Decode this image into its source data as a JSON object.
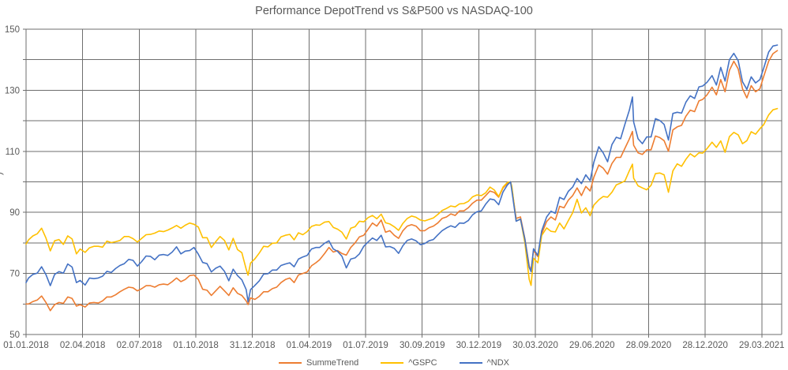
{
  "colors": {
    "background": "#ffffff",
    "text": "#595959",
    "grid": "#6e6e6e",
    "axis": "#595959"
  },
  "y_axis_label_fragment": ")",
  "chart_data": {
    "type": "line",
    "title": "Performance DepotTrend vs S&P500 vs NASDAQ-100",
    "xlabel": "",
    "ylabel": "",
    "ylim": [
      50,
      150
    ],
    "y_gridline_step": 10,
    "y_tick_labels": [
      150,
      130,
      110,
      90,
      70,
      50
    ],
    "grid": "both",
    "legend_position": "bottom-center",
    "x_range": [
      "2018-01-01",
      "2021-04-30"
    ],
    "x_ticks": [
      {
        "date": "2018-01-01",
        "label": "01.01.2018"
      },
      {
        "date": "2018-04-02",
        "label": "02.04.2018"
      },
      {
        "date": "2018-07-02",
        "label": "02.07.2018"
      },
      {
        "date": "2018-10-01",
        "label": "01.10.2018"
      },
      {
        "date": "2018-12-31",
        "label": "31.12.2018"
      },
      {
        "date": "2019-04-01",
        "label": "01.04.2019"
      },
      {
        "date": "2019-07-01",
        "label": "01.07.2019"
      },
      {
        "date": "2019-09-30",
        "label": "30.09.2019"
      },
      {
        "date": "2019-12-30",
        "label": "30.12.2019"
      },
      {
        "date": "2020-03-30",
        "label": "30.03.2020"
      },
      {
        "date": "2020-06-29",
        "label": "29.06.2020"
      },
      {
        "date": "2020-09-28",
        "label": "28.09.2020"
      },
      {
        "date": "2020-12-28",
        "label": "28.12.2020"
      },
      {
        "date": "2021-03-29",
        "label": "29.03.2021"
      }
    ],
    "dates": [
      "2018-01-01",
      "2018-01-05",
      "2018-01-12",
      "2018-01-19",
      "2018-01-26",
      "2018-02-02",
      "2018-02-09",
      "2018-02-16",
      "2018-02-23",
      "2018-03-02",
      "2018-03-09",
      "2018-03-16",
      "2018-03-23",
      "2018-03-29",
      "2018-04-06",
      "2018-04-13",
      "2018-04-20",
      "2018-04-27",
      "2018-05-04",
      "2018-05-11",
      "2018-05-18",
      "2018-05-25",
      "2018-06-01",
      "2018-06-08",
      "2018-06-15",
      "2018-06-22",
      "2018-06-29",
      "2018-07-06",
      "2018-07-13",
      "2018-07-20",
      "2018-07-27",
      "2018-08-03",
      "2018-08-10",
      "2018-08-17",
      "2018-08-24",
      "2018-08-31",
      "2018-09-07",
      "2018-09-14",
      "2018-09-21",
      "2018-09-28",
      "2018-10-05",
      "2018-10-12",
      "2018-10-19",
      "2018-10-26",
      "2018-11-02",
      "2018-11-09",
      "2018-11-16",
      "2018-11-23",
      "2018-11-30",
      "2018-12-07",
      "2018-12-14",
      "2018-12-21",
      "2018-12-24",
      "2018-12-28",
      "2019-01-04",
      "2019-01-11",
      "2019-01-18",
      "2019-01-25",
      "2019-02-01",
      "2019-02-08",
      "2019-02-15",
      "2019-02-22",
      "2019-03-01",
      "2019-03-08",
      "2019-03-15",
      "2019-03-22",
      "2019-03-29",
      "2019-04-05",
      "2019-04-12",
      "2019-04-18",
      "2019-04-26",
      "2019-05-03",
      "2019-05-10",
      "2019-05-17",
      "2019-05-24",
      "2019-05-31",
      "2019-06-07",
      "2019-06-14",
      "2019-06-21",
      "2019-06-28",
      "2019-07-05",
      "2019-07-12",
      "2019-07-19",
      "2019-07-26",
      "2019-08-02",
      "2019-08-09",
      "2019-08-16",
      "2019-08-23",
      "2019-08-30",
      "2019-09-06",
      "2019-09-13",
      "2019-09-20",
      "2019-09-27",
      "2019-10-04",
      "2019-10-11",
      "2019-10-18",
      "2019-10-25",
      "2019-11-01",
      "2019-11-08",
      "2019-11-15",
      "2019-11-22",
      "2019-11-29",
      "2019-12-06",
      "2019-12-13",
      "2019-12-20",
      "2019-12-27",
      "2020-01-03",
      "2020-01-10",
      "2020-01-17",
      "2020-01-24",
      "2020-01-31",
      "2020-02-07",
      "2020-02-14",
      "2020-02-19",
      "2020-02-21",
      "2020-02-28",
      "2020-03-06",
      "2020-03-13",
      "2020-03-20",
      "2020-03-23",
      "2020-03-27",
      "2020-04-03",
      "2020-04-09",
      "2020-04-17",
      "2020-04-24",
      "2020-05-01",
      "2020-05-08",
      "2020-05-15",
      "2020-05-22",
      "2020-05-29",
      "2020-06-05",
      "2020-06-12",
      "2020-06-19",
      "2020-06-26",
      "2020-07-02",
      "2020-07-10",
      "2020-07-17",
      "2020-07-24",
      "2020-07-31",
      "2020-08-07",
      "2020-08-14",
      "2020-08-21",
      "2020-08-28",
      "2020-09-02",
      "2020-09-04",
      "2020-09-11",
      "2020-09-18",
      "2020-09-25",
      "2020-10-02",
      "2020-10-09",
      "2020-10-16",
      "2020-10-23",
      "2020-10-30",
      "2020-11-06",
      "2020-11-13",
      "2020-11-20",
      "2020-11-27",
      "2020-12-04",
      "2020-12-11",
      "2020-12-18",
      "2020-12-24",
      "2020-12-31",
      "2021-01-08",
      "2021-01-15",
      "2021-01-22",
      "2021-01-29",
      "2021-02-05",
      "2021-02-12",
      "2021-02-19",
      "2021-02-26",
      "2021-03-05",
      "2021-03-12",
      "2021-03-19",
      "2021-03-26",
      "2021-04-01",
      "2021-04-09",
      "2021-04-16",
      "2021-04-23"
    ],
    "series": [
      {
        "name": "SummeTrend",
        "color": "#ED7D31",
        "values": [
          60.0,
          60.0,
          60.8,
          61.3,
          62.6,
          60.5,
          57.8,
          59.8,
          60.5,
          60.2,
          62.3,
          61.8,
          59.3,
          59.8,
          59.0,
          60.3,
          60.5,
          60.3,
          61.0,
          62.3,
          62.3,
          63.0,
          64.0,
          64.8,
          65.5,
          65.3,
          64.3,
          65.0,
          66.0,
          66.0,
          65.5,
          66.3,
          66.5,
          66.3,
          67.3,
          68.5,
          67.3,
          68.0,
          69.3,
          69.5,
          68.0,
          64.8,
          64.5,
          62.8,
          64.3,
          65.8,
          64.3,
          62.8,
          65.3,
          63.5,
          62.8,
          61.0,
          59.8,
          62.0,
          61.5,
          62.5,
          64.0,
          64.0,
          65.0,
          65.5,
          67.0,
          68.0,
          68.5,
          67.0,
          69.5,
          70.0,
          70.5,
          72.5,
          73.5,
          74.5,
          76.5,
          78.5,
          77.0,
          77.5,
          76.5,
          76.0,
          78.5,
          80.0,
          82.0,
          82.5,
          84.5,
          86.5,
          85.5,
          87.5,
          83.5,
          84.0,
          82.5,
          81.5,
          84.0,
          85.5,
          86.0,
          85.5,
          84.0,
          84.0,
          85.0,
          85.5,
          86.5,
          88.0,
          88.5,
          89.5,
          89.0,
          90.5,
          90.5,
          91.5,
          93.0,
          94.0,
          94.0,
          95.5,
          97.0,
          96.5,
          95.0,
          98.0,
          99.5,
          100.0,
          98.0,
          88.0,
          88.5,
          81.5,
          72.5,
          71.0,
          77.5,
          75.5,
          83.0,
          87.0,
          88.5,
          87.5,
          92.0,
          91.5,
          94.0,
          95.5,
          98.0,
          95.5,
          98.5,
          97.0,
          101.5,
          105.5,
          104.5,
          102.5,
          106.0,
          108.0,
          108.0,
          111.0,
          114.0,
          116.5,
          112.0,
          109.5,
          109.0,
          110.5,
          110.5,
          115.0,
          114.5,
          113.5,
          110.0,
          117.0,
          118.0,
          118.5,
          121.5,
          123.5,
          123.0,
          126.5,
          127.0,
          128.5,
          131.0,
          128.5,
          133.5,
          129.5,
          136.5,
          139.5,
          137.0,
          130.5,
          127.5,
          131.5,
          129.5,
          130.5,
          134.5,
          139.5,
          142.0,
          143.0
        ]
      },
      {
        "name": "^GSPC",
        "color": "#FFC000",
        "values": [
          79.6,
          81.0,
          82.3,
          83.0,
          84.8,
          81.6,
          77.4,
          80.7,
          81.1,
          79.5,
          82.3,
          81.3,
          76.4,
          78.0,
          76.9,
          78.4,
          78.9,
          78.9,
          78.6,
          80.6,
          80.1,
          80.4,
          80.8,
          82.1,
          82.1,
          81.4,
          80.3,
          81.5,
          82.7,
          82.8,
          83.2,
          83.9,
          83.7,
          84.2,
          84.9,
          85.7,
          84.8,
          85.8,
          86.5,
          86.1,
          85.2,
          81.7,
          81.7,
          78.5,
          80.4,
          82.1,
          80.8,
          77.7,
          81.5,
          77.8,
          76.8,
          71.4,
          69.4,
          73.4,
          74.8,
          76.7,
          78.9,
          78.7,
          79.9,
          80.0,
          82.0,
          82.5,
          82.8,
          81.0,
          83.3,
          82.7,
          83.7,
          85.4,
          85.9,
          85.8,
          86.8,
          87.0,
          85.1,
          84.5,
          83.5,
          81.3,
          84.8,
          85.3,
          87.1,
          86.9,
          88.3,
          89.0,
          87.9,
          89.4,
          86.6,
          86.2,
          85.3,
          84.1,
          86.4,
          88.0,
          88.8,
          88.4,
          87.5,
          87.2,
          87.7,
          88.2,
          89.3,
          90.6,
          91.3,
          92.1,
          91.8,
          92.8,
          92.9,
          93.6,
          95.1,
          95.7,
          95.5,
          96.4,
          98.3,
          97.3,
          95.2,
          98.3,
          99.8,
          100.0,
          98.6,
          87.2,
          87.8,
          80.1,
          68.1,
          66.1,
          75.0,
          73.5,
          82.4,
          84.9,
          83.8,
          83.6,
          86.5,
          84.6,
          87.3,
          89.9,
          94.3,
          89.8,
          91.5,
          88.9,
          92.4,
          94.1,
          95.2,
          95.0,
          96.6,
          99.0,
          99.6,
          100.3,
          103.6,
          105.8,
          101.2,
          98.7,
          98.0,
          97.4,
          98.9,
          102.7,
          102.9,
          102.3,
          96.6,
          103.6,
          105.9,
          105.1,
          107.4,
          109.2,
          108.2,
          109.5,
          109.4,
          110.9,
          113.0,
          111.3,
          113.4,
          109.7,
          114.8,
          116.2,
          115.4,
          112.5,
          113.5,
          116.4,
          115.6,
          117.4,
          118.7,
          121.9,
          123.6,
          124.0
        ]
      },
      {
        "name": "^NDX",
        "color": "#4472C4",
        "values": [
          67.0,
          68.5,
          69.7,
          70.1,
          72.2,
          69.6,
          66.0,
          69.7,
          70.6,
          70.1,
          73.1,
          72.1,
          67.0,
          67.7,
          66.2,
          68.5,
          68.3,
          68.5,
          69.1,
          70.7,
          70.3,
          71.6,
          72.6,
          73.2,
          74.6,
          74.3,
          72.4,
          73.9,
          75.7,
          75.6,
          74.5,
          76.0,
          76.2,
          75.9,
          77.0,
          78.7,
          76.4,
          77.3,
          77.5,
          78.5,
          76.3,
          73.6,
          73.2,
          70.5,
          71.7,
          72.4,
          70.7,
          67.6,
          71.4,
          69.3,
          67.9,
          64.7,
          60.7,
          64.7,
          66.1,
          67.6,
          69.8,
          69.9,
          71.1,
          71.1,
          72.6,
          73.1,
          73.5,
          72.2,
          74.7,
          75.4,
          75.9,
          78.0,
          78.5,
          78.5,
          79.9,
          80.7,
          78.0,
          77.2,
          75.6,
          71.8,
          74.7,
          75.1,
          76.4,
          78.9,
          80.3,
          81.6,
          80.8,
          82.5,
          78.7,
          78.8,
          78.2,
          76.6,
          79.1,
          80.8,
          81.3,
          80.7,
          79.4,
          79.8,
          80.7,
          81.1,
          82.6,
          84.0,
          84.9,
          85.6,
          85.1,
          86.5,
          86.4,
          87.3,
          89.2,
          90.2,
          90.5,
          92.7,
          94.4,
          94.1,
          92.5,
          96.7,
          99.0,
          100.0,
          97.2,
          87.1,
          87.8,
          81.3,
          72.0,
          70.6,
          78.1,
          75.9,
          83.9,
          88.5,
          90.4,
          89.7,
          94.9,
          94.2,
          96.9,
          98.3,
          101.1,
          99.4,
          102.3,
          100.4,
          106.4,
          111.5,
          109.5,
          106.6,
          112.2,
          114.6,
          114.1,
          118.9,
          123.4,
          127.8,
          119.6,
          114.1,
          112.5,
          114.7,
          114.7,
          120.7,
          120.1,
          118.8,
          113.7,
          122.4,
          122.8,
          122.5,
          126.1,
          128.2,
          127.3,
          131.1,
          131.4,
          132.6,
          134.8,
          131.7,
          137.5,
          133.0,
          140.0,
          142.1,
          139.7,
          132.8,
          130.3,
          134.4,
          132.4,
          133.5,
          137.2,
          142.5,
          144.5,
          144.8
        ]
      }
    ]
  }
}
